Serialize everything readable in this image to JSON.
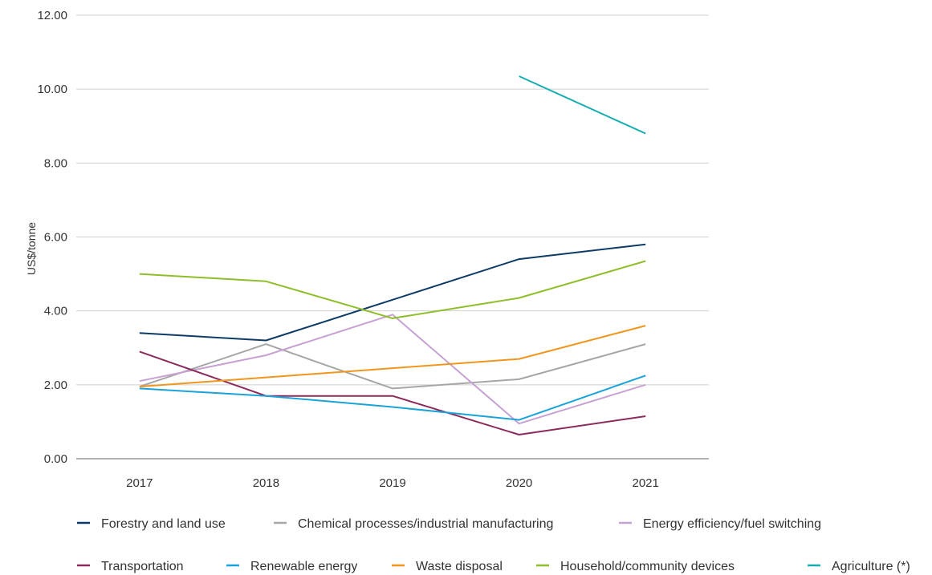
{
  "chart_data": {
    "type": "line",
    "title": "",
    "xlabel": "",
    "ylabel": "US$/tonne",
    "x": [
      "2017",
      "2018",
      "2019",
      "2020",
      "2021"
    ],
    "ylim": [
      0,
      12
    ],
    "yticks": [
      "0.00",
      "2.00",
      "4.00",
      "6.00",
      "8.00",
      "10.00",
      "12.00"
    ],
    "grid": true,
    "legend_position": "bottom",
    "series": [
      {
        "name": "Forestry and land use",
        "color": "#0d3a66",
        "values": [
          3.4,
          3.2,
          4.3,
          5.4,
          5.8
        ]
      },
      {
        "name": "Chemical processes/industrial manufacturing",
        "color": "#a6a6a6",
        "values": [
          1.95,
          3.1,
          1.9,
          2.15,
          3.1
        ]
      },
      {
        "name": "Energy efficiency/fuel switching",
        "color": "#c6a1d2",
        "values": [
          2.1,
          2.8,
          3.9,
          0.95,
          2.0
        ]
      },
      {
        "name": "Transportation",
        "color": "#8c2a5c",
        "values": [
          2.9,
          1.7,
          1.7,
          0.65,
          1.15
        ]
      },
      {
        "name": "Renewable energy",
        "color": "#1aa3d9",
        "values": [
          1.9,
          1.7,
          1.4,
          1.05,
          2.25
        ]
      },
      {
        "name": "Waste disposal",
        "color": "#f0961e",
        "values": [
          1.95,
          2.2,
          2.45,
          2.7,
          3.6
        ]
      },
      {
        "name": "Household/community devices",
        "color": "#8fbe2a",
        "values": [
          5.0,
          4.8,
          3.8,
          4.35,
          5.35
        ]
      },
      {
        "name": "Agriculture (*)",
        "color": "#17adb0",
        "values": [
          null,
          null,
          null,
          10.35,
          8.8
        ]
      }
    ]
  }
}
